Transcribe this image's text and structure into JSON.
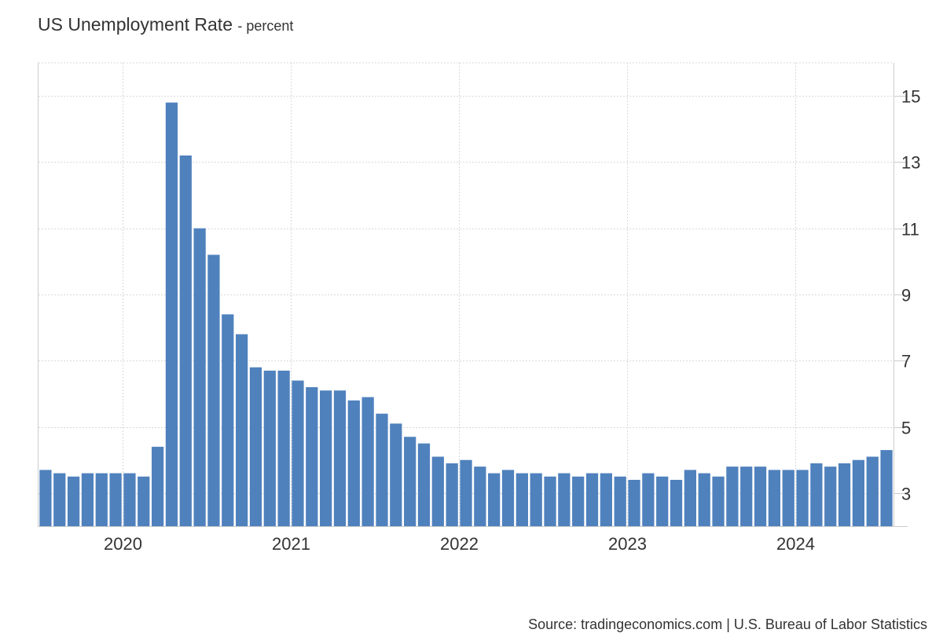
{
  "chart_data": {
    "type": "bar",
    "title": "US Unemployment Rate",
    "subtitle": "percent",
    "xlabel": "",
    "ylabel": "",
    "x": [
      "2019-07",
      "2019-08",
      "2019-09",
      "2019-10",
      "2019-11",
      "2019-12",
      "2020-01",
      "2020-02",
      "2020-03",
      "2020-04",
      "2020-05",
      "2020-06",
      "2020-07",
      "2020-08",
      "2020-09",
      "2020-10",
      "2020-11",
      "2020-12",
      "2021-01",
      "2021-02",
      "2021-03",
      "2021-04",
      "2021-05",
      "2021-06",
      "2021-07",
      "2021-08",
      "2021-09",
      "2021-10",
      "2021-11",
      "2021-12",
      "2022-01",
      "2022-02",
      "2022-03",
      "2022-04",
      "2022-05",
      "2022-06",
      "2022-07",
      "2022-08",
      "2022-09",
      "2022-10",
      "2022-11",
      "2022-12",
      "2023-01",
      "2023-02",
      "2023-03",
      "2023-04",
      "2023-05",
      "2023-06",
      "2023-07",
      "2023-08",
      "2023-09",
      "2023-10",
      "2023-11",
      "2023-12",
      "2024-01",
      "2024-02",
      "2024-03",
      "2024-04",
      "2024-05",
      "2024-06",
      "2024-07"
    ],
    "values": [
      3.7,
      3.6,
      3.5,
      3.6,
      3.6,
      3.6,
      3.6,
      3.5,
      4.4,
      14.8,
      13.2,
      11.0,
      10.2,
      8.4,
      7.8,
      6.8,
      6.7,
      6.7,
      6.4,
      6.2,
      6.1,
      6.1,
      5.8,
      5.9,
      5.4,
      5.1,
      4.7,
      4.5,
      4.1,
      3.9,
      4.0,
      3.8,
      3.6,
      3.7,
      3.6,
      3.6,
      3.5,
      3.6,
      3.5,
      3.6,
      3.6,
      3.5,
      3.4,
      3.6,
      3.5,
      3.4,
      3.7,
      3.6,
      3.5,
      3.8,
      3.8,
      3.8,
      3.7,
      3.7,
      3.7,
      3.9,
      3.8,
      3.9,
      4.0,
      4.1,
      4.3
    ],
    "x_tick_labels": [
      "2020",
      "2021",
      "2022",
      "2023",
      "2024"
    ],
    "y_ticks": [
      3,
      5,
      7,
      9,
      11,
      13,
      15
    ],
    "ylim": [
      2,
      16
    ],
    "y_axis_position": "right",
    "grid": true,
    "bar_color": "#4f81bd",
    "grid_color": "#d9d9d9"
  },
  "source": "Source: tradingeconomics.com | U.S. Bureau of Labor Statistics"
}
